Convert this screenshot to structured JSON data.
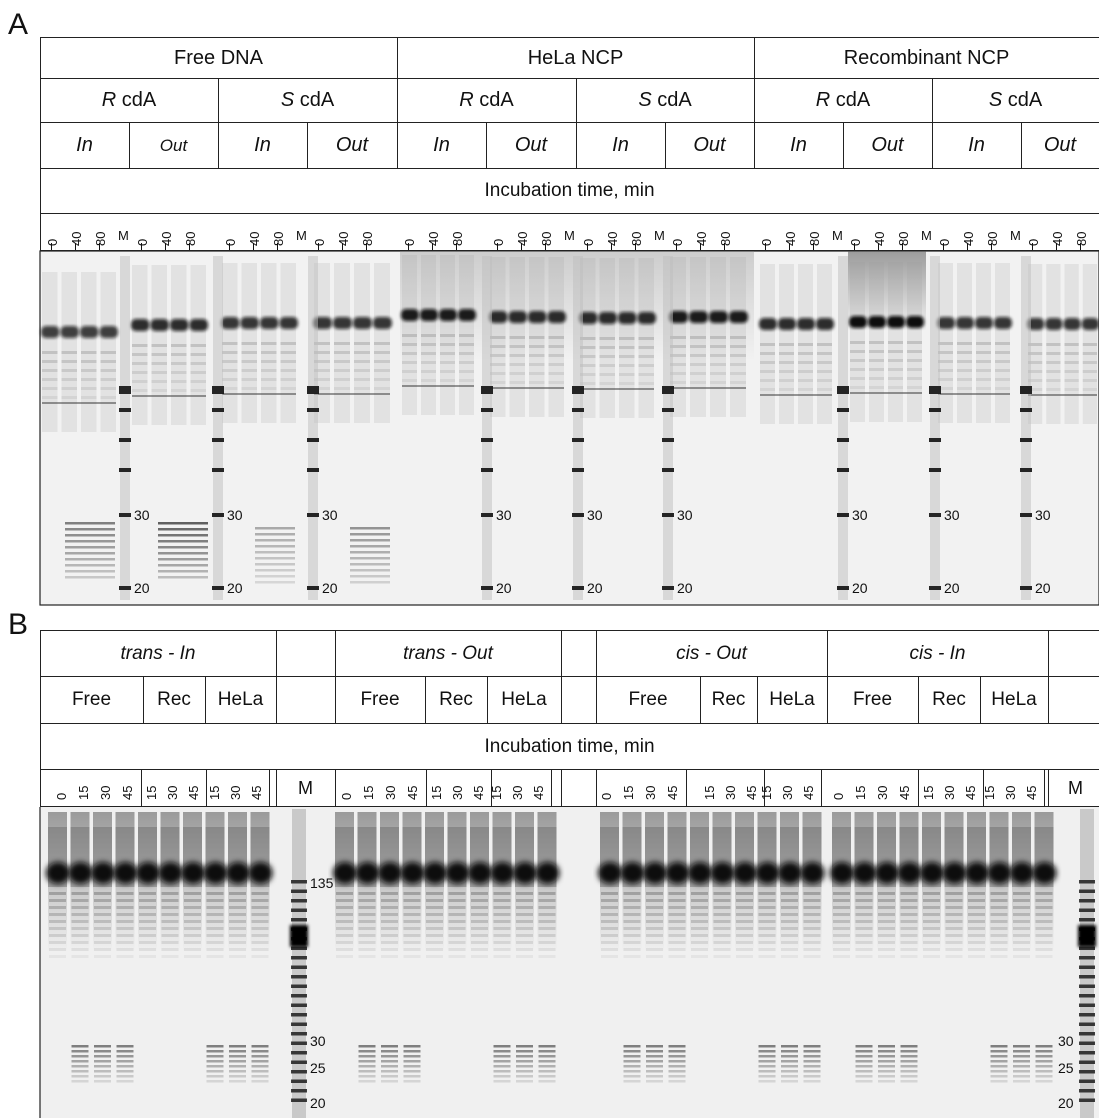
{
  "panelA": {
    "letter": "A",
    "row1": [
      "Free DNA",
      "HeLa NCP",
      "Recombinant NCP"
    ],
    "row2": [
      {
        "prefix": "R",
        "suffix": " cdA"
      },
      {
        "prefix": "S",
        "suffix": " cdA"
      },
      {
        "prefix": "R",
        "suffix": " cdA"
      },
      {
        "prefix": "S",
        "suffix": " cdA"
      },
      {
        "prefix": "R",
        "suffix": " cdA"
      },
      {
        "prefix": "S",
        "suffix": " cdA"
      }
    ],
    "row3": [
      "In",
      "Out",
      "In",
      "Out",
      "In",
      "Out",
      "In",
      "Out",
      "In",
      "Out",
      "In",
      "Out"
    ],
    "incubation_label": "Incubation time, min",
    "time_ticks": [
      "0",
      "40",
      "80"
    ],
    "marker_label": "M",
    "size_labels": [
      "30",
      "20"
    ]
  },
  "panelB": {
    "letter": "B",
    "row1": [
      "trans - In",
      "",
      "trans - Out",
      "",
      "cis - Out",
      "cis - In",
      ""
    ],
    "row2": [
      "Free",
      "Rec",
      "HeLa",
      "",
      "Free",
      "Rec",
      "HeLa",
      "",
      "Free",
      "Rec",
      "HeLa",
      "Free",
      "Rec",
      "HeLa",
      ""
    ],
    "incubation_label": "Incubation time, min",
    "free_ticks": [
      "0",
      "15",
      "30",
      "45"
    ],
    "short_ticks": [
      "15",
      "30",
      "45"
    ],
    "marker_label": "M",
    "size_labels_left": [
      "135",
      "30",
      "25",
      "20"
    ],
    "size_labels_right": [
      "30",
      "25",
      "20"
    ]
  }
}
